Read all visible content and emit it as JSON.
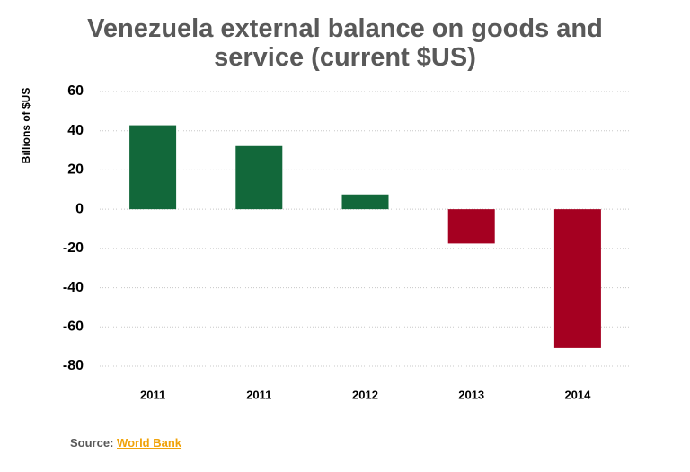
{
  "chart_data": {
    "type": "bar",
    "title": "Venezuela external balance on goods and service (current $US)",
    "y_label": "Billions of $US",
    "categories": [
      "2011",
      "2011",
      "2012",
      "2013",
      "2014"
    ],
    "values": [
      42.8,
      32.2,
      7.5,
      -17.5,
      -70.8
    ],
    "colors": [
      "#12683a",
      "#12683a",
      "#12683a",
      "#a50021",
      "#a50021"
    ],
    "ylim": [
      -80,
      60
    ],
    "yticks": [
      -80,
      -60,
      -40,
      -20,
      0,
      20,
      40,
      60
    ],
    "grid": true
  },
  "source": {
    "label": "Source:",
    "link": "World Bank"
  }
}
